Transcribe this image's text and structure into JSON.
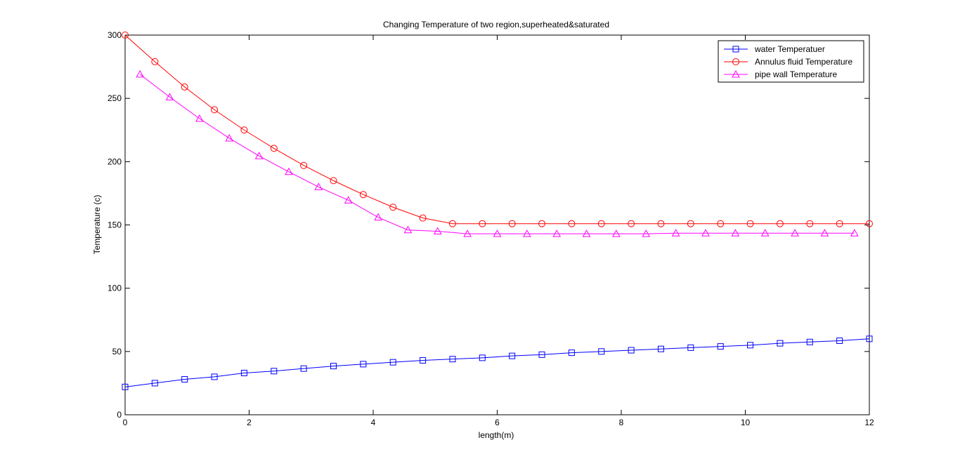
{
  "chart_data": {
    "type": "line",
    "title": "Changing Temperature of two region,superheated&saturated",
    "xlabel": "length(m)",
    "ylabel": "Temperature (c)",
    "xlim": [
      0,
      12
    ],
    "ylim": [
      0,
      300
    ],
    "xticks": [
      0,
      2,
      4,
      6,
      8,
      10,
      12
    ],
    "yticks": [
      0,
      50,
      100,
      150,
      200,
      250,
      300
    ],
    "grid": false,
    "legend_position": "top-right",
    "series": [
      {
        "name": "water Temperatuer",
        "color": "#0000ff",
        "marker": "square",
        "x": [
          0,
          0.48,
          0.96,
          1.44,
          1.92,
          2.4,
          2.88,
          3.36,
          3.84,
          4.32,
          4.8,
          5.28,
          5.76,
          6.24,
          6.72,
          7.2,
          7.68,
          8.16,
          8.64,
          9.12,
          9.6,
          10.08,
          10.56,
          11.04,
          11.52,
          12
        ],
        "y": [
          22,
          25,
          28,
          30,
          33,
          34.5,
          36.5,
          38.5,
          40,
          41.5,
          43,
          44,
          45,
          46.5,
          47.5,
          49,
          50,
          51,
          52,
          53,
          54,
          55,
          56.5,
          57.5,
          58.5,
          60
        ]
      },
      {
        "name": "Annulus fluid Temperature",
        "color": "#ff0000",
        "marker": "circle",
        "x": [
          0,
          0.48,
          0.96,
          1.44,
          1.92,
          2.4,
          2.88,
          3.36,
          3.84,
          4.32,
          4.8,
          5.28,
          5.76,
          6.24,
          6.72,
          7.2,
          7.68,
          8.16,
          8.64,
          9.12,
          9.6,
          10.08,
          10.56,
          11.04,
          11.52,
          12
        ],
        "y": [
          300,
          279,
          259,
          241,
          225,
          210.5,
          197,
          185,
          174,
          164,
          155.5,
          151,
          151,
          151,
          151,
          151,
          151,
          151,
          151,
          151,
          151,
          151,
          151,
          151,
          151,
          151
        ]
      },
      {
        "name": "pipe wall Temperature",
        "color": "#ff00ff",
        "marker": "triangle",
        "x": [
          0.24,
          0.72,
          1.2,
          1.68,
          2.16,
          2.64,
          3.12,
          3.6,
          4.08,
          4.56,
          5.04,
          5.52,
          6.0,
          6.48,
          6.96,
          7.44,
          7.92,
          8.4,
          8.88,
          9.36,
          9.84,
          10.32,
          10.8,
          11.28,
          11.76
        ],
        "y": [
          269,
          251,
          234,
          218.5,
          204.5,
          192,
          180,
          169.5,
          156,
          146,
          145,
          143,
          143,
          143,
          143,
          143,
          143,
          143,
          143.5,
          143.5,
          143.5,
          143.5,
          143.5,
          143.5,
          143.5
        ]
      }
    ]
  }
}
